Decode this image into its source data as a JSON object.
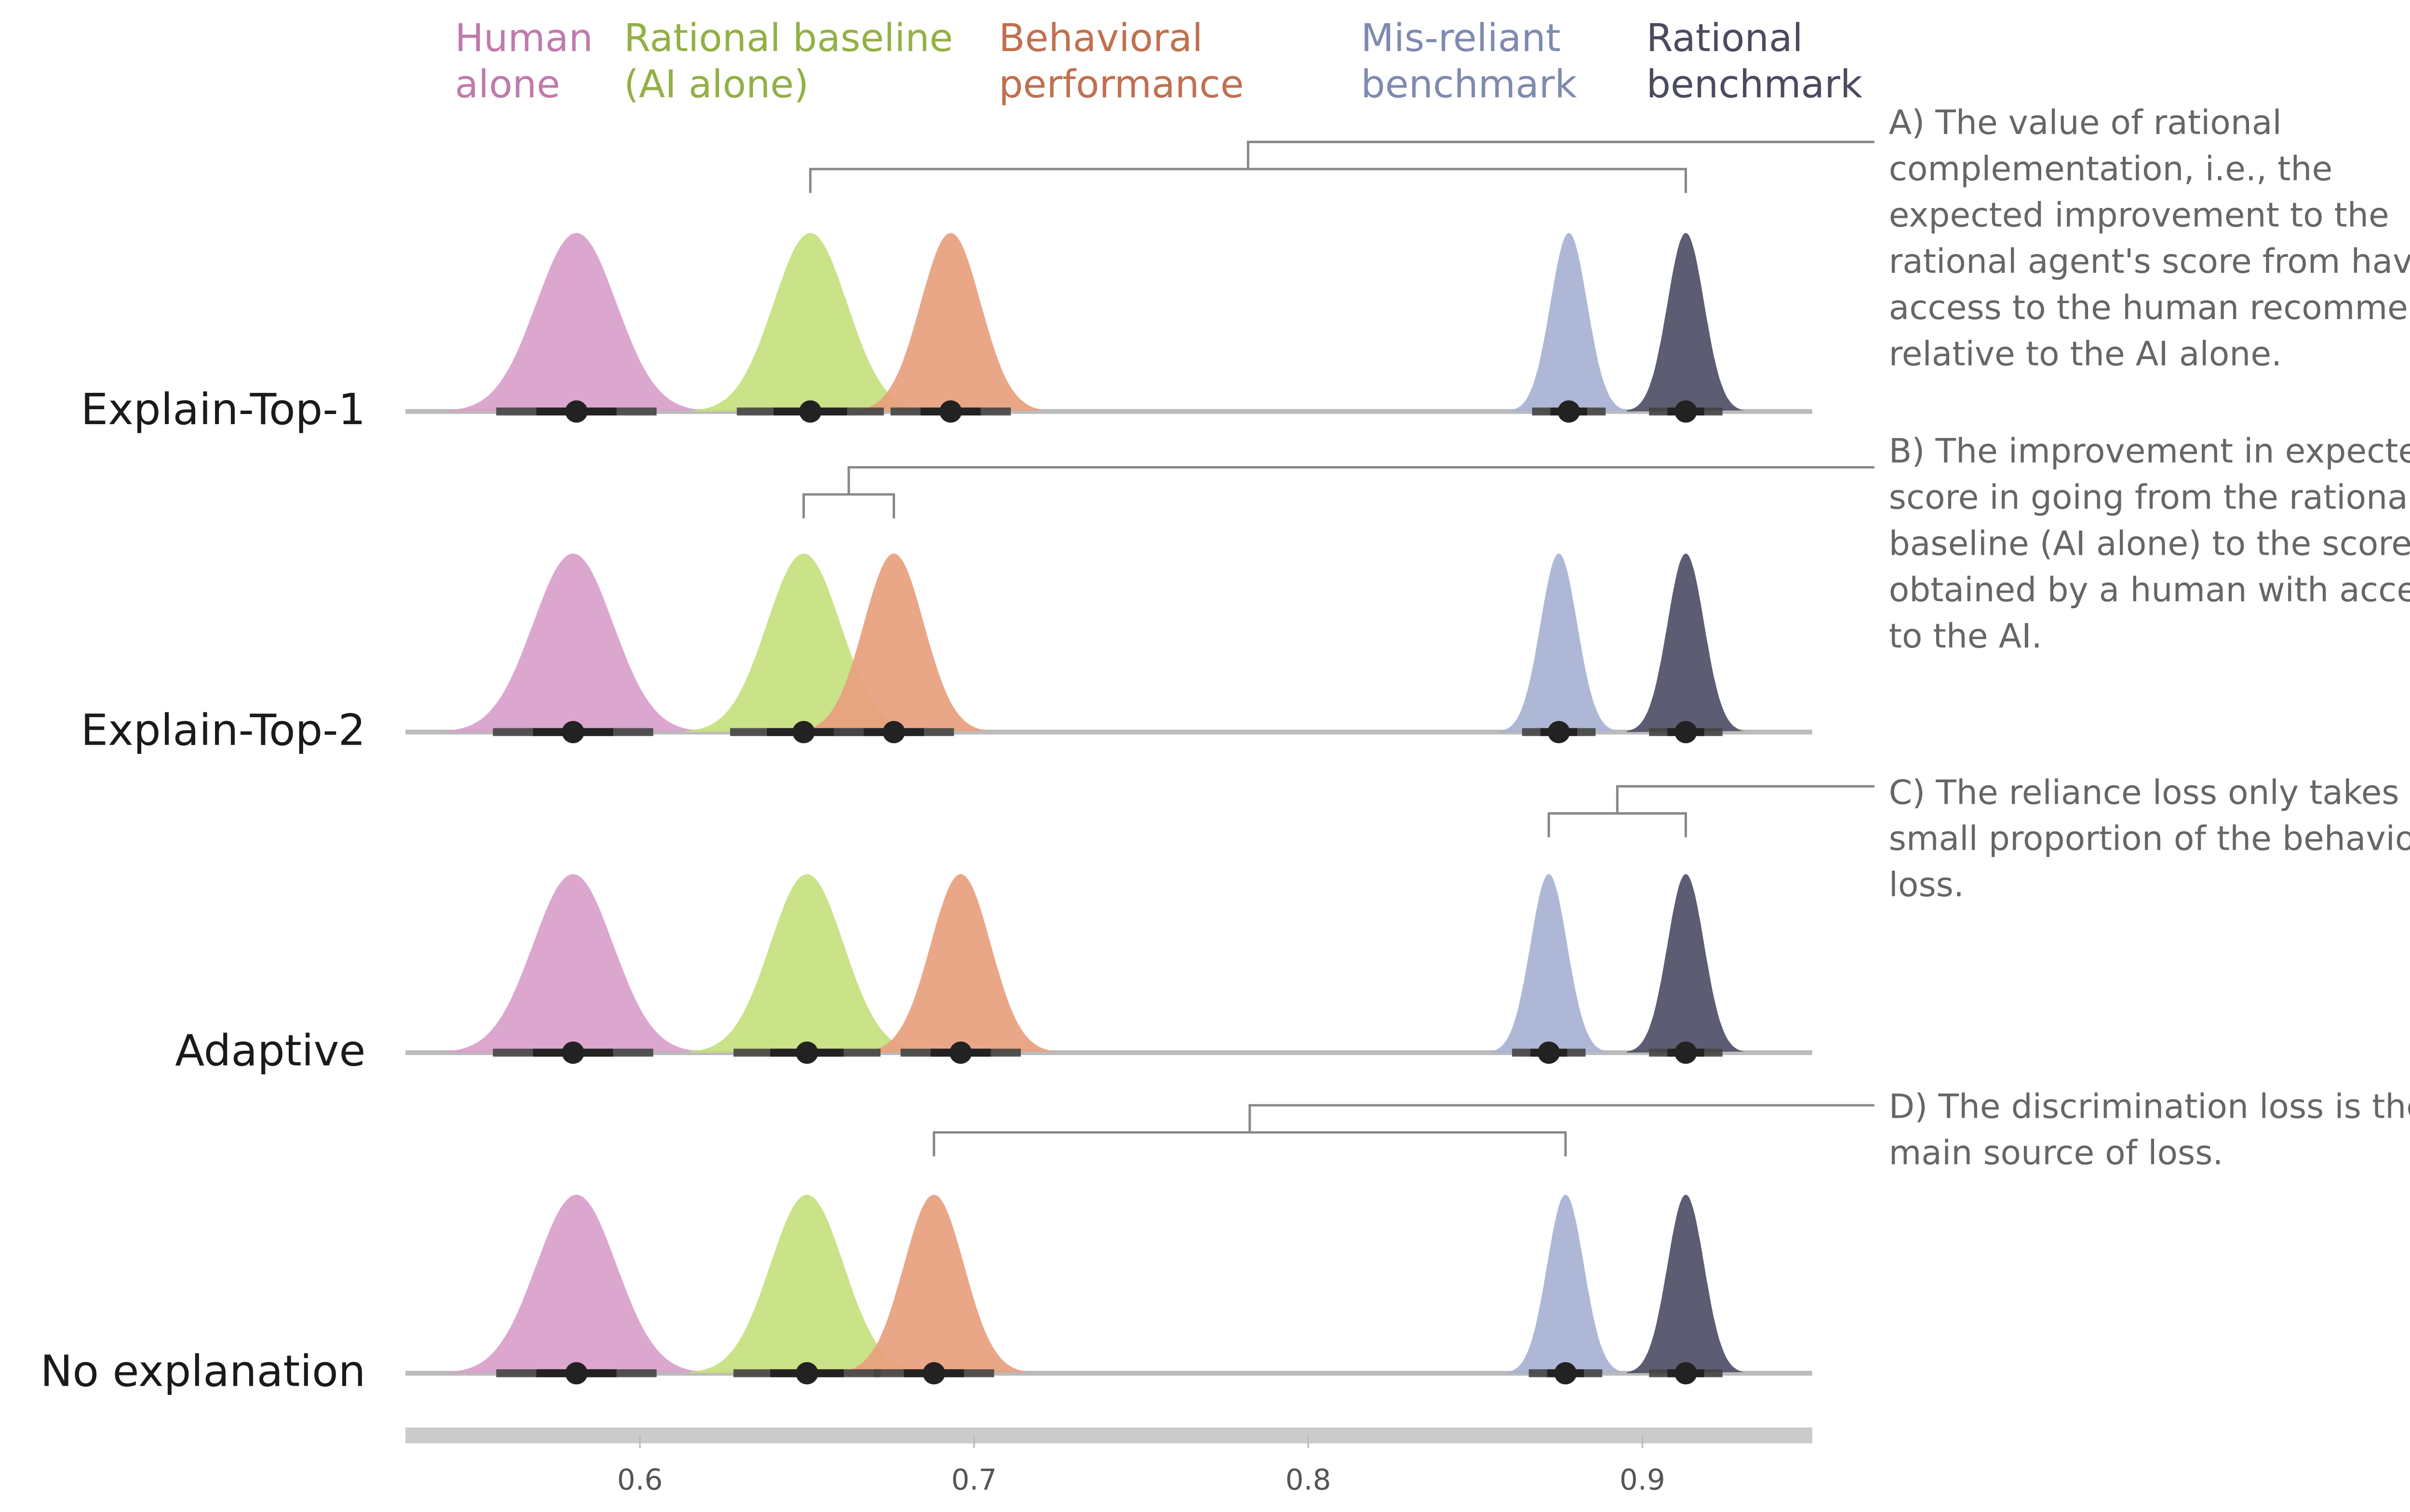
{
  "chart_data": {
    "type": "area",
    "xlim": [
      0.53,
      0.951
    ],
    "x_ticks": [
      "0.6",
      "0.7",
      "0.8",
      "0.9"
    ],
    "x_tick_values": [
      0.6,
      0.7,
      0.8,
      0.9
    ],
    "grid": false,
    "legend_placement": "top",
    "series": [
      {
        "name": "Human alone",
        "label_lines": [
          "Human",
          "alone"
        ],
        "fill": "#d9a0cb",
        "label_color": "#c07aab",
        "sd": 0.012
      },
      {
        "name": "Rational baseline (AI alone)",
        "label_lines": [
          "Rational baseline",
          "(AI alone)"
        ],
        "fill": "#c5e07e",
        "label_color": "#93b045",
        "sd": 0.011
      },
      {
        "name": "Behavioral performance",
        "label_lines": [
          "Behavioral",
          "performance"
        ],
        "fill": "#e8a07e",
        "label_color": "#c07050",
        "sd": 0.009
      },
      {
        "name": "Mis-reliant benchmark",
        "label_lines": [
          "Mis-reliant",
          "benchmark"
        ],
        "fill": "#a7b2d3",
        "label_color": "#7f8ab0",
        "sd": 0.0055
      },
      {
        "name": "Rational benchmark",
        "label_lines": [
          "Rational",
          "benchmark"
        ],
        "fill": "#4e4f66",
        "label_color": "#4a4b60",
        "sd": 0.0055
      }
    ],
    "categories": [
      "Explain-Top-1",
      "Explain-Top-2",
      "Adaptive",
      "No explanation"
    ],
    "means": [
      [
        0.581,
        0.651,
        0.693,
        0.878,
        0.913
      ],
      [
        0.58,
        0.649,
        0.676,
        0.875,
        0.913
      ],
      [
        0.58,
        0.65,
        0.696,
        0.872,
        0.913
      ],
      [
        0.581,
        0.65,
        0.688,
        0.877,
        0.913
      ]
    ],
    "annotations": [
      {
        "row": 0,
        "from": 0.651,
        "to": 0.913,
        "lines": [
          "A) The value of rational",
          "complementation, i.e., the",
          "expected improvement to the",
          "rational agent's score from having",
          "access to the human recommender",
          "relative to the AI alone."
        ]
      },
      {
        "row": 1,
        "from": 0.649,
        "to": 0.676,
        "lines": [
          "B) The improvement in expected",
          "score in going from the rational",
          "baseline (AI alone) to the score",
          "obtained by a human with access",
          "to the AI."
        ]
      },
      {
        "row": 2,
        "from": 0.872,
        "to": 0.913,
        "lines": [
          "C) The reliance loss only takes a",
          "small proportion of the behavioral",
          "loss."
        ]
      },
      {
        "row": 3,
        "from": 0.688,
        "to": 0.877,
        "lines": [
          "D) The discrimination loss is the",
          "main source of loss."
        ]
      }
    ]
  }
}
